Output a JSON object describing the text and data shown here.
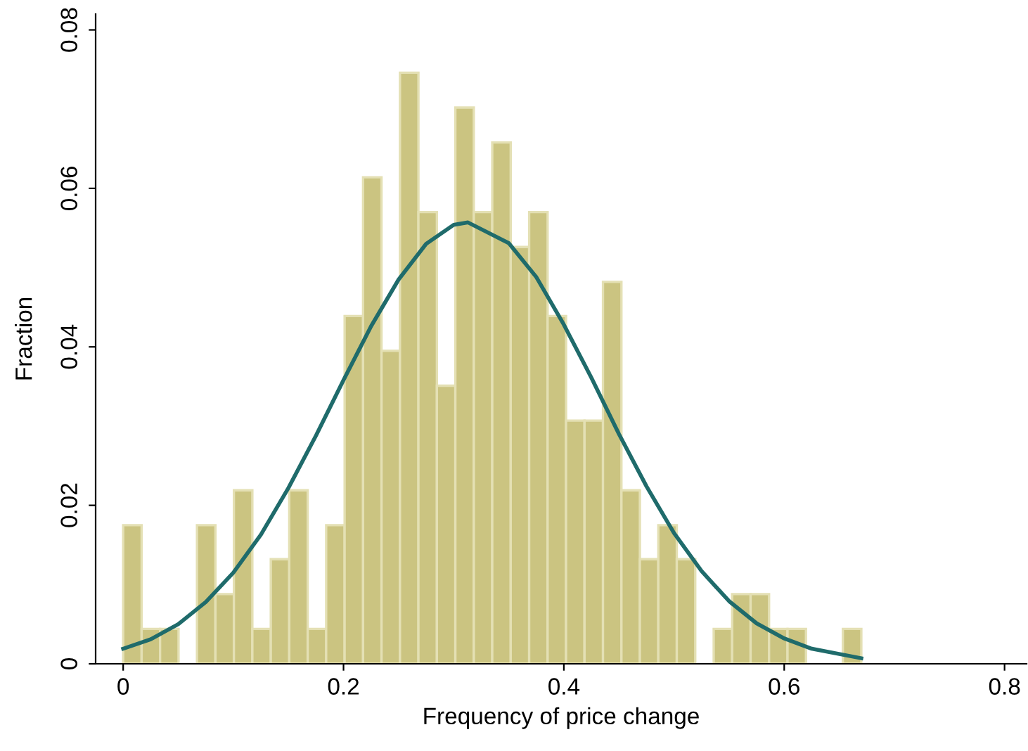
{
  "chart_data": {
    "type": "histogram",
    "xlabel": "Frequency of price change",
    "ylabel": "Fraction",
    "bins": [
      0,
      0.01675,
      0.0335,
      0.05025,
      0.067,
      0.08375,
      0.1005,
      0.11725,
      0.134,
      0.15075,
      0.1675,
      0.18425,
      0.201,
      0.21775,
      0.2345,
      0.25125,
      0.268,
      0.28475,
      0.3015,
      0.31825,
      0.335,
      0.35175,
      0.3685,
      0.38525,
      0.402,
      0.41875,
      0.4355,
      0.45225,
      0.469,
      0.48575,
      0.5025,
      0.51925,
      0.536,
      0.55275,
      0.5695,
      0.58625,
      0.603,
      0.61975,
      0.6365,
      0.65325,
      0.67
    ],
    "series": [
      {
        "color": "#cbc481",
        "values": [
          0.0175,
          0.0044,
          0.0044,
          0,
          0.0175,
          0.0088,
          0.0219,
          0.0044,
          0.0132,
          0.0219,
          0.0044,
          0.0175,
          0.0439,
          0.0614,
          0.0395,
          0.0746,
          0.057,
          0.0351,
          0.0702,
          0.057,
          0.0658,
          0.0526,
          0.057,
          0.0439,
          0.0307,
          0.0307,
          0.0482,
          0.0219,
          0.0132,
          0.0175,
          0.0132,
          0,
          0.0044,
          0.0088,
          0.0088,
          0.0044,
          0.0044,
          0,
          0,
          0.0044
        ]
      },
      {
        "type": "line",
        "color": "#1f6b6b",
        "x": [
          0,
          0.025,
          0.05,
          0.075,
          0.1,
          0.125,
          0.15,
          0.175,
          0.2,
          0.225,
          0.25,
          0.275,
          0.3,
          0.313,
          0.35,
          0.375,
          0.4,
          0.425,
          0.45,
          0.475,
          0.5,
          0.525,
          0.55,
          0.575,
          0.6,
          0.625,
          0.67
        ],
        "values": [
          0.0019,
          0.0031,
          0.005,
          0.0078,
          0.0115,
          0.0163,
          0.0222,
          0.0288,
          0.0358,
          0.0426,
          0.0485,
          0.053,
          0.0554,
          0.0557,
          0.0531,
          0.0488,
          0.0428,
          0.0361,
          0.029,
          0.0224,
          0.0165,
          0.0117,
          0.0079,
          0.0051,
          0.0032,
          0.0019,
          0.0007
        ]
      }
    ],
    "xlim": [
      -0.025,
      0.82
    ],
    "ylim": [
      0,
      0.082
    ],
    "xticks": [
      0,
      0.2,
      0.4,
      0.6,
      0.8
    ],
    "yticks": [
      0,
      0.02,
      0.04,
      0.06,
      0.08
    ],
    "grid": false,
    "legend": false
  }
}
